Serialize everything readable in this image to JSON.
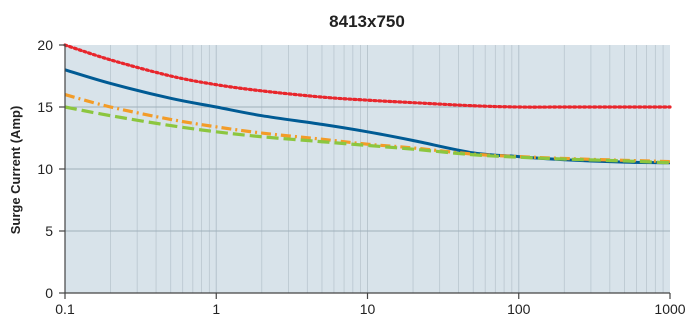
{
  "chart_data": {
    "type": "line",
    "title": "8413x750",
    "xlabel": "",
    "ylabel": "Surge Current (Amp)",
    "xscale": "log",
    "xlim": [
      0.1,
      1000
    ],
    "ylim": [
      0,
      20
    ],
    "x_ticks": [
      "0.1",
      "1",
      "10",
      "100",
      "1000"
    ],
    "y_ticks": [
      "0",
      "5",
      "10",
      "15",
      "20"
    ],
    "grid": true,
    "plot_background": "#d8e3ea",
    "series": [
      {
        "color": "#e8262c",
        "style": "dotted",
        "x": [
          0.1,
          0.2,
          0.5,
          1,
          2,
          5,
          10,
          20,
          50,
          100,
          200,
          500,
          1000
        ],
        "y": [
          20,
          18.8,
          17.5,
          16.8,
          16.3,
          15.8,
          15.55,
          15.35,
          15.1,
          15.0,
          15.0,
          15.0,
          15.0
        ]
      },
      {
        "color": "#005b94",
        "style": "solid",
        "x": [
          0.1,
          0.2,
          0.5,
          1,
          2,
          5,
          10,
          20,
          50,
          100,
          200,
          500,
          1000
        ],
        "y": [
          18,
          16.9,
          15.7,
          15.0,
          14.3,
          13.6,
          13.0,
          12.3,
          11.3,
          11.0,
          10.75,
          10.55,
          10.5
        ]
      },
      {
        "color": "#f39c28",
        "style": "dash-dot",
        "x": [
          0.1,
          0.2,
          0.5,
          1,
          2,
          5,
          10,
          20,
          50,
          100,
          200,
          500,
          1000
        ],
        "y": [
          16,
          15.0,
          14.0,
          13.4,
          12.9,
          12.4,
          12.0,
          11.7,
          11.2,
          11.0,
          10.85,
          10.7,
          10.6
        ]
      },
      {
        "color": "#8cc63f",
        "style": "dashed",
        "x": [
          0.1,
          0.2,
          0.5,
          1,
          2,
          5,
          10,
          20,
          50,
          100,
          200,
          500,
          1000
        ],
        "y": [
          15,
          14.3,
          13.5,
          13.0,
          12.6,
          12.2,
          11.9,
          11.6,
          11.15,
          10.95,
          10.8,
          10.65,
          10.5
        ]
      }
    ]
  }
}
